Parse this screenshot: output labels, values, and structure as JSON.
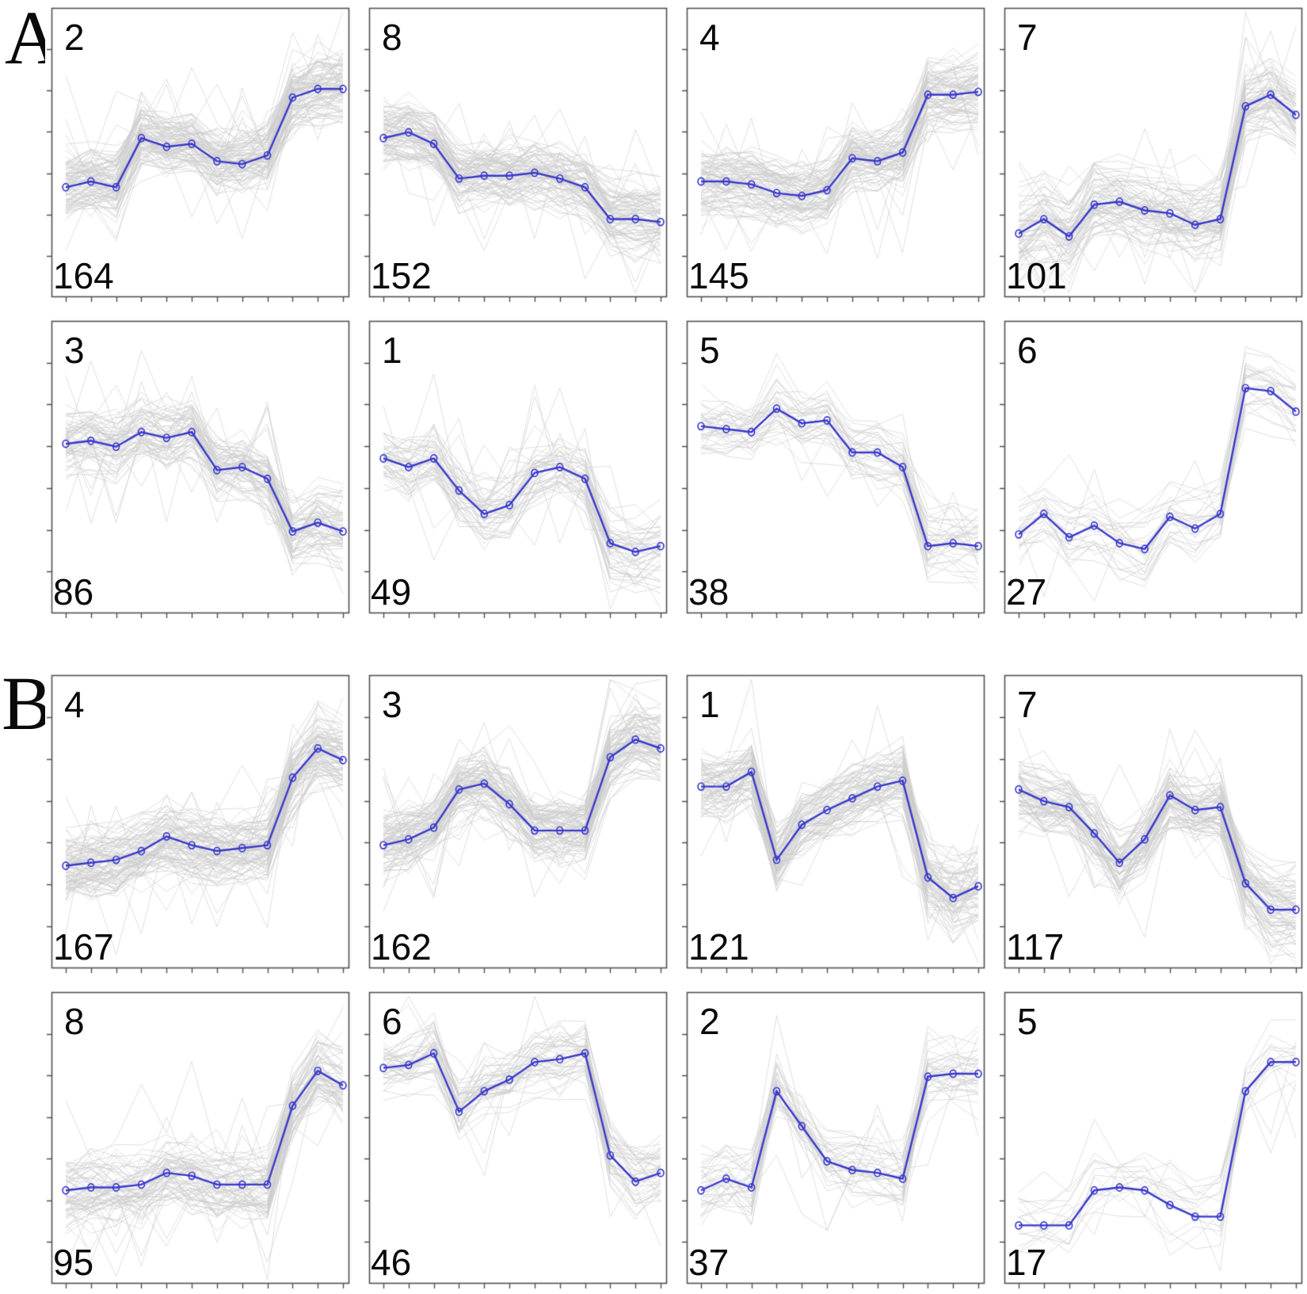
{
  "figure": {
    "panel_a": {
      "label": "A",
      "charts": [
        {
          "cluster": "2",
          "count": "164"
        },
        {
          "cluster": "8",
          "count": "152"
        },
        {
          "cluster": "4",
          "count": "145"
        },
        {
          "cluster": "7",
          "count": "101"
        },
        {
          "cluster": "3",
          "count": "86"
        },
        {
          "cluster": "1",
          "count": "49"
        },
        {
          "cluster": "5",
          "count": "38"
        },
        {
          "cluster": "6",
          "count": "27"
        }
      ]
    },
    "panel_b": {
      "label": "B",
      "charts": [
        {
          "cluster": "4",
          "count": "167"
        },
        {
          "cluster": "3",
          "count": "162"
        },
        {
          "cluster": "1",
          "count": "121"
        },
        {
          "cluster": "7",
          "count": "117"
        },
        {
          "cluster": "8",
          "count": "95"
        },
        {
          "cluster": "6",
          "count": "46"
        },
        {
          "cluster": "2",
          "count": "37"
        },
        {
          "cluster": "5",
          "count": "17"
        }
      ]
    }
  },
  "chart_data": [
    {
      "type": "line",
      "panel": "A",
      "cluster": "2",
      "n_members": 164,
      "x": [
        1,
        2,
        3,
        4,
        5,
        6,
        7,
        8,
        9,
        10,
        11,
        12
      ],
      "mean_normalized": [
        0.38,
        0.4,
        0.38,
        0.55,
        0.52,
        0.53,
        0.47,
        0.46,
        0.49,
        0.69,
        0.72,
        0.72
      ]
    },
    {
      "type": "line",
      "panel": "A",
      "cluster": "8",
      "n_members": 152,
      "x": [
        1,
        2,
        3,
        4,
        5,
        6,
        7,
        8,
        9,
        10,
        11,
        12
      ],
      "mean_normalized": [
        0.55,
        0.57,
        0.53,
        0.41,
        0.42,
        0.42,
        0.43,
        0.41,
        0.38,
        0.27,
        0.27,
        0.26
      ]
    },
    {
      "type": "line",
      "panel": "A",
      "cluster": "4",
      "n_members": 145,
      "x": [
        1,
        2,
        3,
        4,
        5,
        6,
        7,
        8,
        9,
        10,
        11,
        12
      ],
      "mean_normalized": [
        0.4,
        0.4,
        0.39,
        0.36,
        0.35,
        0.37,
        0.48,
        0.47,
        0.5,
        0.7,
        0.7,
        0.71
      ]
    },
    {
      "type": "line",
      "panel": "A",
      "cluster": "7",
      "n_members": 101,
      "x": [
        1,
        2,
        3,
        4,
        5,
        6,
        7,
        8,
        9,
        10,
        11,
        12
      ],
      "mean_normalized": [
        0.22,
        0.27,
        0.21,
        0.32,
        0.33,
        0.3,
        0.29,
        0.25,
        0.27,
        0.66,
        0.7,
        0.63
      ]
    },
    {
      "type": "line",
      "panel": "A",
      "cluster": "3",
      "n_members": 86,
      "x": [
        1,
        2,
        3,
        4,
        5,
        6,
        7,
        8,
        9,
        10,
        11,
        12
      ],
      "mean_normalized": [
        0.58,
        0.59,
        0.57,
        0.62,
        0.6,
        0.62,
        0.49,
        0.5,
        0.46,
        0.28,
        0.31,
        0.28
      ]
    },
    {
      "type": "line",
      "panel": "A",
      "cluster": "1",
      "n_members": 49,
      "x": [
        1,
        2,
        3,
        4,
        5,
        6,
        7,
        8,
        9,
        10,
        11,
        12
      ],
      "mean_normalized": [
        0.53,
        0.5,
        0.53,
        0.42,
        0.34,
        0.37,
        0.48,
        0.5,
        0.46,
        0.24,
        0.21,
        0.23
      ]
    },
    {
      "type": "line",
      "panel": "A",
      "cluster": "5",
      "n_members": 38,
      "x": [
        1,
        2,
        3,
        4,
        5,
        6,
        7,
        8,
        9,
        10,
        11,
        12
      ],
      "mean_normalized": [
        0.64,
        0.63,
        0.62,
        0.7,
        0.65,
        0.66,
        0.55,
        0.55,
        0.5,
        0.23,
        0.24,
        0.23
      ]
    },
    {
      "type": "line",
      "panel": "A",
      "cluster": "6",
      "n_members": 27,
      "x": [
        1,
        2,
        3,
        4,
        5,
        6,
        7,
        8,
        9,
        10,
        11,
        12
      ],
      "mean_normalized": [
        0.27,
        0.34,
        0.26,
        0.3,
        0.24,
        0.22,
        0.33,
        0.29,
        0.34,
        0.77,
        0.76,
        0.69
      ]
    },
    {
      "type": "line",
      "panel": "B",
      "cluster": "4",
      "n_members": 167,
      "x": [
        1,
        2,
        3,
        4,
        5,
        6,
        7,
        8,
        9,
        10,
        11,
        12
      ],
      "mean_normalized": [
        0.35,
        0.36,
        0.37,
        0.4,
        0.45,
        0.42,
        0.4,
        0.41,
        0.42,
        0.65,
        0.75,
        0.71
      ]
    },
    {
      "type": "line",
      "panel": "B",
      "cluster": "3",
      "n_members": 162,
      "x": [
        1,
        2,
        3,
        4,
        5,
        6,
        7,
        8,
        9,
        10,
        11,
        12
      ],
      "mean_normalized": [
        0.42,
        0.44,
        0.48,
        0.61,
        0.63,
        0.56,
        0.47,
        0.47,
        0.47,
        0.72,
        0.78,
        0.75
      ]
    },
    {
      "type": "line",
      "panel": "B",
      "cluster": "1",
      "n_members": 121,
      "x": [
        1,
        2,
        3,
        4,
        5,
        6,
        7,
        8,
        9,
        10,
        11,
        12
      ],
      "mean_normalized": [
        0.62,
        0.62,
        0.67,
        0.37,
        0.49,
        0.54,
        0.58,
        0.62,
        0.64,
        0.31,
        0.24,
        0.28
      ]
    },
    {
      "type": "line",
      "panel": "B",
      "cluster": "7",
      "n_members": 117,
      "x": [
        1,
        2,
        3,
        4,
        5,
        6,
        7,
        8,
        9,
        10,
        11,
        12
      ],
      "mean_normalized": [
        0.61,
        0.57,
        0.55,
        0.46,
        0.36,
        0.44,
        0.59,
        0.54,
        0.55,
        0.29,
        0.2,
        0.2
      ]
    },
    {
      "type": "line",
      "panel": "B",
      "cluster": "8",
      "n_members": 95,
      "x": [
        1,
        2,
        3,
        4,
        5,
        6,
        7,
        8,
        9,
        10,
        11,
        12
      ],
      "mean_normalized": [
        0.32,
        0.33,
        0.33,
        0.34,
        0.38,
        0.37,
        0.34,
        0.34,
        0.34,
        0.61,
        0.73,
        0.68
      ]
    },
    {
      "type": "line",
      "panel": "B",
      "cluster": "6",
      "n_members": 46,
      "x": [
        1,
        2,
        3,
        4,
        5,
        6,
        7,
        8,
        9,
        10,
        11,
        12
      ],
      "mean_normalized": [
        0.74,
        0.75,
        0.79,
        0.59,
        0.66,
        0.7,
        0.76,
        0.77,
        0.79,
        0.44,
        0.35,
        0.38
      ]
    },
    {
      "type": "line",
      "panel": "B",
      "cluster": "2",
      "n_members": 37,
      "x": [
        1,
        2,
        3,
        4,
        5,
        6,
        7,
        8,
        9,
        10,
        11,
        12
      ],
      "mean_normalized": [
        0.32,
        0.36,
        0.33,
        0.66,
        0.54,
        0.42,
        0.39,
        0.38,
        0.36,
        0.71,
        0.72,
        0.72
      ]
    },
    {
      "type": "line",
      "panel": "B",
      "cluster": "5",
      "n_members": 17,
      "x": [
        1,
        2,
        3,
        4,
        5,
        6,
        7,
        8,
        9,
        10,
        11,
        12
      ],
      "mean_normalized": [
        0.2,
        0.2,
        0.2,
        0.32,
        0.33,
        0.32,
        0.27,
        0.23,
        0.23,
        0.66,
        0.76,
        0.76
      ]
    }
  ],
  "colors": {
    "mean_line": "#3838cc",
    "member_line": "#cdcdcd",
    "box_border": "#4f4f4f",
    "text": "#0a0a0a"
  }
}
